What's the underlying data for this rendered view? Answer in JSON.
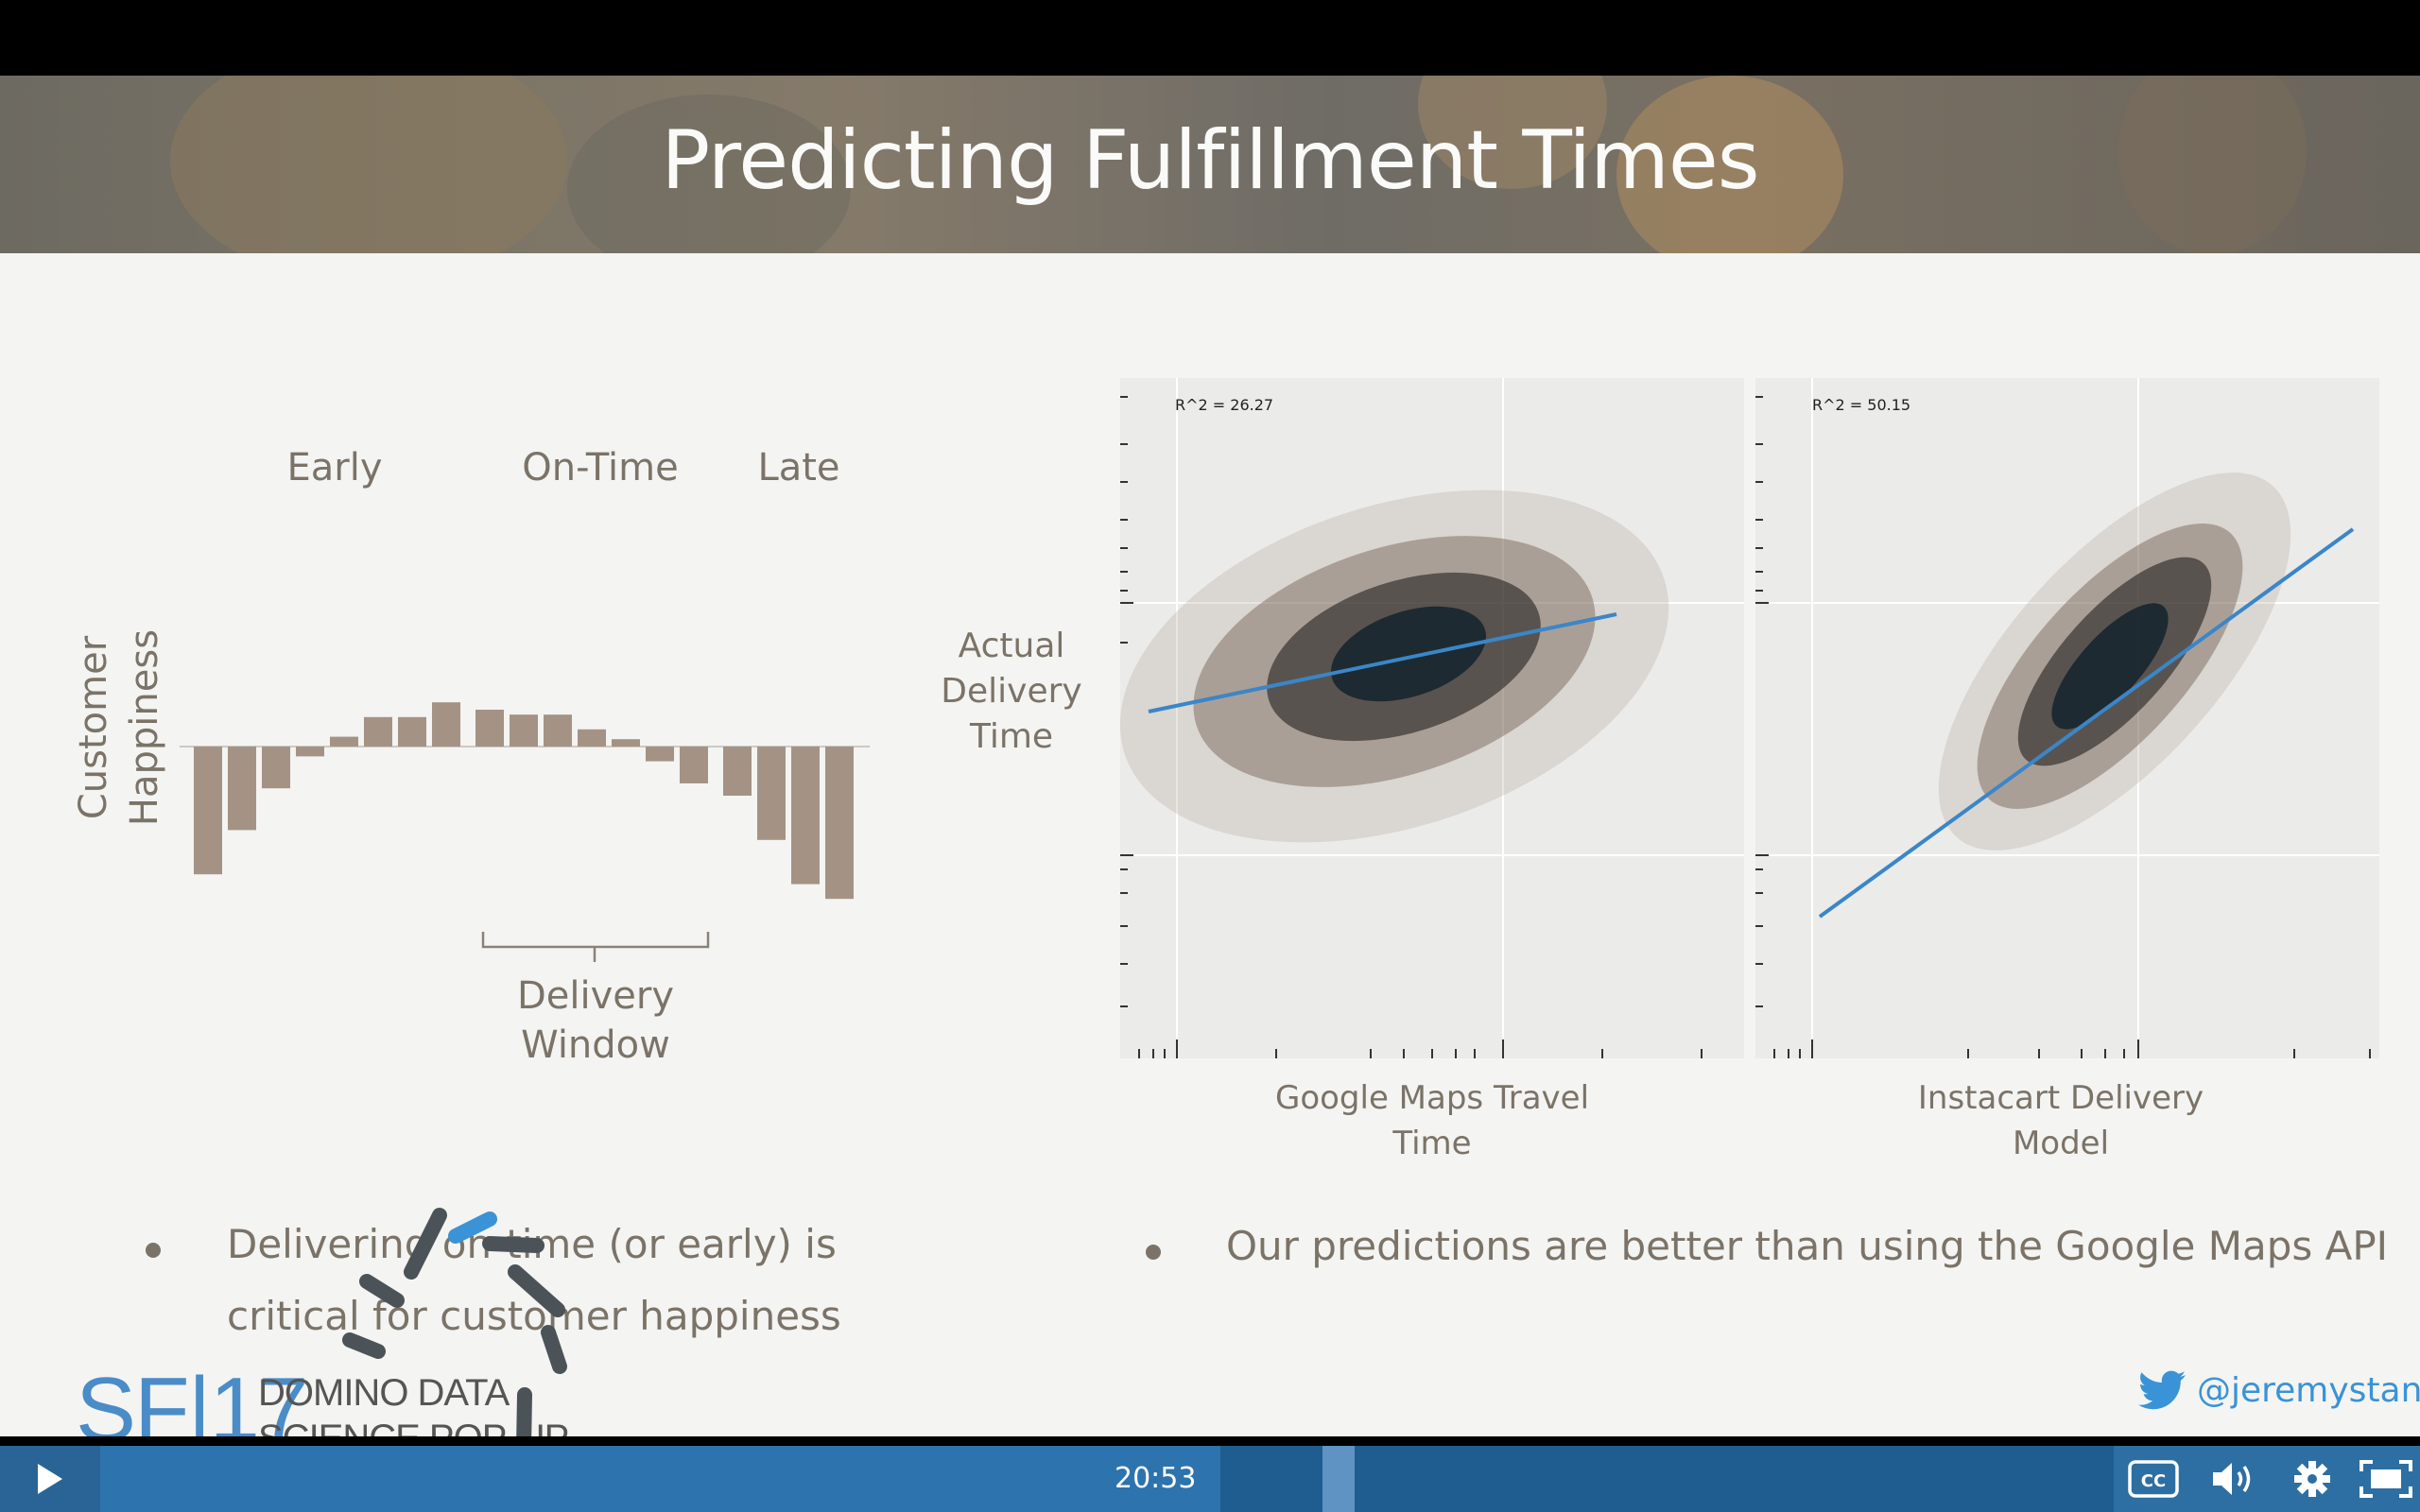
{
  "slide": {
    "title": "Predicting Fulfillment Times",
    "left": {
      "labels": {
        "early": "Early",
        "on_time": "On-Time",
        "late": "Late"
      },
      "ylabel_line1": "Customer",
      "ylabel_line2": "Happiness",
      "window_line1": "Delivery",
      "window_line2": "Window",
      "bullet_line1": "Delivering on-time (or early) is",
      "bullet_line2": "critical for customer happiness"
    },
    "right": {
      "ylabel_lines": [
        "Actual",
        "Delivery",
        "Time"
      ],
      "bullet": "Our predictions are better than using the Google Maps API"
    },
    "twitter_handle": "@jeremystan",
    "logo": {
      "mark": "SF|17",
      "line1": "DOMINO DATA",
      "line2": "SCIENCE POP-UP"
    }
  },
  "player": {
    "time": "20:53",
    "progress_fraction": 0.53
  },
  "colors": {
    "bar": "#a49385",
    "line": "#3a86c8",
    "player": "#2d6fa3",
    "text": "#7b7368"
  },
  "chart_data": [
    {
      "type": "bar",
      "title": "",
      "xlabel": "",
      "ylabel": "Customer Happiness",
      "groups": [
        "Early",
        "On-Time",
        "Late"
      ],
      "values": [
        -2.6,
        -1.7,
        -0.85,
        -0.2,
        0.2,
        0.6,
        0.6,
        0.9,
        0.75,
        0.65,
        0.65,
        0.35,
        0.15,
        -0.3,
        -0.75,
        -1.0,
        -1.9,
        -2.8,
        -3.1
      ],
      "annotations": [
        "Delivery Window"
      ]
    },
    {
      "type": "scatter",
      "panels": [
        {
          "xlabel": "Google Maps Travel Time",
          "annotation": "R^2 = 26.27",
          "fit_line": [
            [
              0.05,
              0.49
            ],
            [
              0.8,
              0.77
            ]
          ]
        },
        {
          "xlabel": "Instacart Delivery Model",
          "annotation": "R^2 = 50.15",
          "fit_line": [
            [
              0.1,
              0.32
            ],
            [
              0.95,
              0.9
            ]
          ]
        }
      ],
      "ylabel": "Actual Delivery Time",
      "xscale": "log",
      "grid": true
    }
  ]
}
